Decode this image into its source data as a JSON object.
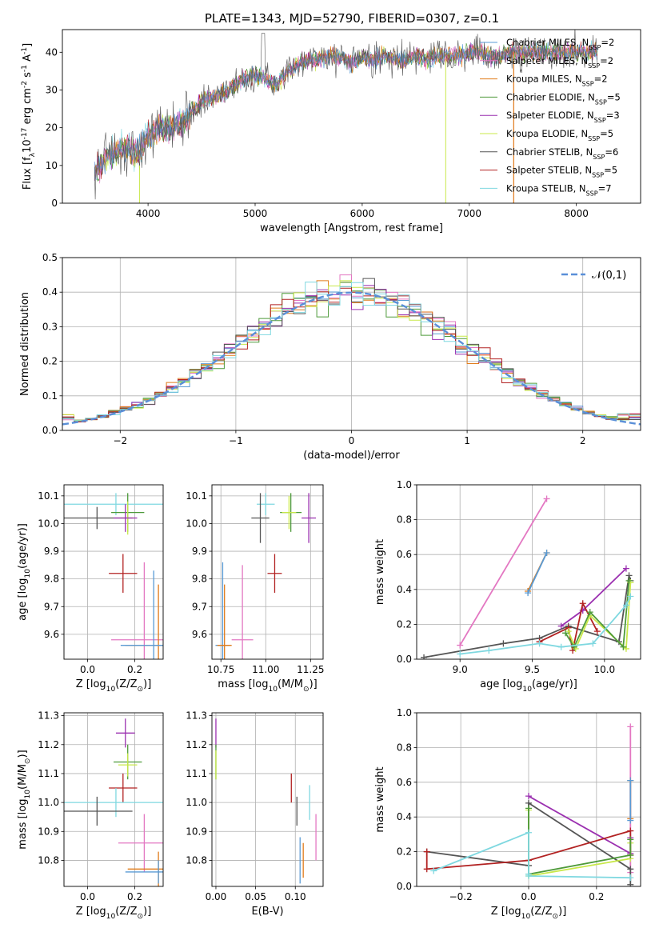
{
  "figure": {
    "title": "PLATE=1343, MJD=52790, FIBERID=0307, z=0.1",
    "model_colors": {
      "Chabrier MILES": "#5a9bd5",
      "Salpeter MILES": "#e377c2",
      "Kroupa MILES": "#e07b1a",
      "Chabrier ELODIE": "#4e9a3a",
      "Salpeter ELODIE": "#9b30b0",
      "Kroupa ELODIE": "#c8e84a",
      "Chabrier STELIB": "#555555",
      "Salpeter STELIB": "#b22222",
      "Kroupa STELIB": "#7fd8e0"
    }
  },
  "chart_data": [
    {
      "id": "spectrum",
      "type": "line",
      "xlabel": "wavelength [Angstrom, rest frame]",
      "ylabel": "Flux [f$_\\lambda$10$^{-17}$ erg cm$^{-2}$ s$^{-1}$ A$^{-1}$]",
      "xlim": [
        3200,
        8600
      ],
      "ylim": [
        0,
        46
      ],
      "xticks": [
        4000,
        5000,
        6000,
        7000,
        8000
      ],
      "yticks": [
        0,
        10,
        20,
        30,
        40
      ],
      "legend_position": "top-right",
      "legend": [
        {
          "label": "Chabrier MILES, N$_{SSP}$=2",
          "color": "#5a9bd5"
        },
        {
          "label": "Salpeter MILES, N$_{SSP}$=2",
          "color": "#e377c2"
        },
        {
          "label": "Kroupa MILES, N$_{SSP}$=2",
          "color": "#e07b1a"
        },
        {
          "label": "Chabrier ELODIE, N$_{SSP}$=5",
          "color": "#4e9a3a"
        },
        {
          "label": "Salpeter ELODIE, N$_{SSP}$=3",
          "color": "#9b30b0"
        },
        {
          "label": "Kroupa ELODIE, N$_{SSP}$=5",
          "color": "#c8e84a"
        },
        {
          "label": "Chabrier STELIB, N$_{SSP}$=6",
          "color": "#555555"
        },
        {
          "label": "Salpeter STELIB, N$_{SSP}$=5",
          "color": "#b22222"
        },
        {
          "label": "Kroupa STELIB, N$_{SSP}$=7",
          "color": "#7fd8e0"
        }
      ],
      "continuum": [
        [
          3500,
          8
        ],
        [
          3600,
          12
        ],
        [
          3700,
          14
        ],
        [
          3800,
          15
        ],
        [
          3900,
          13
        ],
        [
          4000,
          18
        ],
        [
          4100,
          20
        ],
        [
          4200,
          20
        ],
        [
          4300,
          21
        ],
        [
          4400,
          24
        ],
        [
          4500,
          27
        ],
        [
          4600,
          28
        ],
        [
          4700,
          29
        ],
        [
          4800,
          31
        ],
        [
          4900,
          33
        ],
        [
          5000,
          34
        ],
        [
          5100,
          33
        ],
        [
          5200,
          31
        ],
        [
          5300,
          35
        ],
        [
          5400,
          37
        ],
        [
          5500,
          38
        ],
        [
          5600,
          38
        ],
        [
          5700,
          39
        ],
        [
          5800,
          39
        ],
        [
          5900,
          37
        ],
        [
          6000,
          39
        ],
        [
          6100,
          38
        ],
        [
          6200,
          39
        ],
        [
          6300,
          38
        ],
        [
          6400,
          38
        ],
        [
          6500,
          39
        ],
        [
          6600,
          38
        ],
        [
          6700,
          39
        ],
        [
          6800,
          39
        ],
        [
          6900,
          39
        ],
        [
          7000,
          40
        ],
        [
          7100,
          40
        ],
        [
          7200,
          39
        ],
        [
          7300,
          39
        ],
        [
          7400,
          40
        ],
        [
          7500,
          40
        ],
        [
          7600,
          40
        ],
        [
          7700,
          40
        ],
        [
          7800,
          40
        ],
        [
          7900,
          40
        ],
        [
          8000,
          40
        ],
        [
          8100,
          40
        ],
        [
          8200,
          40
        ]
      ]
    },
    {
      "id": "residuals",
      "type": "bar",
      "xlabel": "(data-model)/error",
      "ylabel": "Normed distribution",
      "xlim": [
        -2.5,
        2.5
      ],
      "ylim": [
        0,
        0.5
      ],
      "xticks": [
        -2,
        -1,
        0,
        1,
        2
      ],
      "yticks": [
        0.0,
        0.1,
        0.2,
        0.3,
        0.4,
        0.5
      ],
      "legend_position": "top-right",
      "legend": [
        {
          "label": "$\\mathcal{N}(0,1)$",
          "color": "#5a8fd8"
        }
      ],
      "bin_width": 0.1
    },
    {
      "id": "age-vs-Z",
      "type": "scatter",
      "xlabel": "Z [log$_{10}$(Z/Z$_\\odot$)]",
      "ylabel": "age  [log$_{10}$(age/yr)]",
      "xlim": [
        -0.1,
        0.32
      ],
      "ylim": [
        9.51,
        10.14
      ],
      "xticks": [
        0.0,
        0.2
      ],
      "yticks": [
        9.6,
        9.7,
        9.8,
        9.9,
        10.0,
        10.1
      ],
      "points": [
        {
          "model": "Kroupa STELIB",
          "x": 0.12,
          "y": 10.07,
          "xerr": 0.22,
          "yerr": 0.04
        },
        {
          "model": "Chabrier ELODIE",
          "x": 0.17,
          "y": 10.04,
          "xerr": 0.07,
          "yerr": 0.07
        },
        {
          "model": "Chabrier STELIB",
          "x": 0.04,
          "y": 10.02,
          "xerr": 0.15,
          "yerr": 0.04
        },
        {
          "model": "Kroupa ELODIE",
          "x": 0.17,
          "y": 10.02,
          "xerr": 0.03,
          "yerr": 0.06
        },
        {
          "model": "Salpeter ELODIE",
          "x": 0.16,
          "y": 10.02,
          "xerr": 0.05,
          "yerr": 0.05
        },
        {
          "model": "Salpeter STELIB",
          "x": 0.15,
          "y": 9.82,
          "xerr": 0.06,
          "yerr": 0.07
        },
        {
          "model": "Salpeter MILES",
          "x": 0.24,
          "y": 9.58,
          "xerr": 0.14,
          "yerr": 0.28
        },
        {
          "model": "Kroupa MILES",
          "x": 0.3,
          "y": 9.56,
          "xerr": 0.14,
          "yerr": 0.22
        },
        {
          "model": "Chabrier MILES",
          "x": 0.28,
          "y": 9.56,
          "xerr": 0.14,
          "yerr": 0.27
        }
      ]
    },
    {
      "id": "age-vs-mass",
      "type": "scatter",
      "xlabel": "mass [log$_{10}$(M/M$_\\odot$)]",
      "xlim": [
        10.7,
        11.32
      ],
      "ylim": [
        9.51,
        10.14
      ],
      "xticks": [
        10.75,
        11.0,
        11.25
      ],
      "yticks": [
        9.6,
        9.7,
        9.8,
        9.9,
        10.0,
        10.1
      ],
      "points": [
        {
          "model": "Kroupa STELIB",
          "x": 11.0,
          "y": 10.07,
          "xerr": 0.05,
          "yerr": 0.04
        },
        {
          "model": "Chabrier ELODIE",
          "x": 11.14,
          "y": 10.04,
          "xerr": 0.06,
          "yerr": 0.07
        },
        {
          "model": "Kroupa ELODIE",
          "x": 11.13,
          "y": 10.04,
          "xerr": 0.04,
          "yerr": 0.06
        },
        {
          "model": "Chabrier STELIB",
          "x": 10.97,
          "y": 10.02,
          "xerr": 0.05,
          "yerr": 0.09
        },
        {
          "model": "Salpeter ELODIE",
          "x": 11.24,
          "y": 10.02,
          "xerr": 0.04,
          "yerr": 0.09
        },
        {
          "model": "Salpeter STELIB",
          "x": 11.05,
          "y": 9.82,
          "xerr": 0.04,
          "yerr": 0.07
        },
        {
          "model": "Salpeter MILES",
          "x": 10.87,
          "y": 9.58,
          "xerr": 0.06,
          "yerr": 0.27
        },
        {
          "model": "Chabrier MILES",
          "x": 10.76,
          "y": 9.56,
          "xerr": 0.04,
          "yerr": 0.3
        },
        {
          "model": "Kroupa MILES",
          "x": 10.77,
          "y": 9.56,
          "xerr": 0.04,
          "yerr": 0.22
        }
      ]
    },
    {
      "id": "weight-vs-age",
      "type": "line",
      "ylabel": "mass weight",
      "xlabel": "age  [log$_{10}$(age/yr)]",
      "xlim": [
        8.7,
        10.25
      ],
      "ylim": [
        0,
        1
      ],
      "xticks": [
        9.0,
        9.5,
        10.0
      ],
      "yticks": [
        0.0,
        0.2,
        0.4,
        0.6,
        0.8,
        1.0
      ],
      "series": [
        {
          "model": "Salpeter MILES",
          "x": [
            9.0,
            9.6
          ],
          "y": [
            0.08,
            0.92
          ]
        },
        {
          "model": "Kroupa MILES",
          "x": [
            9.47,
            9.6
          ],
          "y": [
            0.39,
            0.61
          ]
        },
        {
          "model": "Chabrier MILES",
          "x": [
            9.47,
            9.6
          ],
          "y": [
            0.38,
            0.61
          ]
        },
        {
          "model": "Chabrier STELIB",
          "x": [
            8.75,
            9.3,
            9.55,
            9.75,
            10.1,
            10.17,
            10.18
          ],
          "y": [
            0.01,
            0.09,
            0.12,
            0.19,
            0.1,
            0.48,
            0.45
          ]
        },
        {
          "model": "Salpeter ELODIE",
          "x": [
            9.7,
            9.85,
            10.15
          ],
          "y": [
            0.19,
            0.28,
            0.52
          ]
        },
        {
          "model": "Salpeter STELIB",
          "x": [
            9.55,
            9.75,
            9.78,
            9.85,
            9.95
          ],
          "y": [
            0.1,
            0.18,
            0.05,
            0.32,
            0.16
          ]
        },
        {
          "model": "Kroupa ELODIE",
          "x": [
            9.75,
            9.8,
            9.9,
            10.15,
            10.18
          ],
          "y": [
            0.16,
            0.06,
            0.25,
            0.06,
            0.44
          ]
        },
        {
          "model": "Chabrier ELODIE",
          "x": [
            9.73,
            9.79,
            9.9,
            10.13,
            10.17
          ],
          "y": [
            0.15,
            0.07,
            0.27,
            0.07,
            0.45
          ]
        },
        {
          "model": "Kroupa STELIB",
          "x": [
            9.0,
            9.2,
            9.55,
            9.7,
            9.92,
            10.15,
            10.18
          ],
          "y": [
            0.03,
            0.05,
            0.09,
            0.07,
            0.09,
            0.31,
            0.36
          ]
        }
      ]
    },
    {
      "id": "mass-vs-Z",
      "type": "scatter",
      "ylabel": "mass [log$_{10}$(M/M$_\\odot$)]",
      "xlabel": "Z [log$_{10}$(Z/Z$_\\odot$)]",
      "xlim": [
        -0.1,
        0.32
      ],
      "ylim": [
        10.71,
        11.31
      ],
      "xticks": [
        0.0,
        0.2
      ],
      "yticks": [
        10.8,
        10.9,
        11.0,
        11.1,
        11.2,
        11.3
      ],
      "points": [
        {
          "model": "Salpeter ELODIE",
          "x": 0.16,
          "y": 11.24,
          "xerr": 0.04,
          "yerr": 0.05
        },
        {
          "model": "Chabrier ELODIE",
          "x": 0.17,
          "y": 11.14,
          "xerr": 0.06,
          "yerr": 0.06
        },
        {
          "model": "Kroupa ELODIE",
          "x": 0.17,
          "y": 11.13,
          "xerr": 0.04,
          "yerr": 0.04
        },
        {
          "model": "Salpeter STELIB",
          "x": 0.15,
          "y": 11.05,
          "xerr": 0.06,
          "yerr": 0.05
        },
        {
          "model": "Kroupa STELIB",
          "x": 0.12,
          "y": 11.0,
          "xerr": 0.22,
          "yerr": 0.05
        },
        {
          "model": "Chabrier STELIB",
          "x": 0.04,
          "y": 10.97,
          "xerr": 0.15,
          "yerr": 0.05
        },
        {
          "model": "Salpeter MILES",
          "x": 0.24,
          "y": 10.86,
          "xerr": 0.11,
          "yerr": 0.1
        },
        {
          "model": "Kroupa MILES",
          "x": 0.3,
          "y": 10.77,
          "xerr": 0.13,
          "yerr": 0.06
        },
        {
          "model": "Chabrier MILES",
          "x": 0.3,
          "y": 10.76,
          "xerr": 0.14,
          "yerr": 0.04
        }
      ]
    },
    {
      "id": "mass-vs-ebv",
      "type": "scatter",
      "xlabel": "E(B-V)",
      "xlim": [
        -0.005,
        0.135
      ],
      "ylim": [
        10.71,
        11.31
      ],
      "xticks": [
        0.0,
        0.05,
        0.1
      ],
      "yticks": [
        10.8,
        10.9,
        11.0,
        11.1,
        11.2,
        11.3
      ],
      "points": [
        {
          "model": "Salpeter ELODIE",
          "x": 0.0,
          "y": 11.24,
          "xerr": 0.0,
          "yerr": 0.05
        },
        {
          "model": "Chabrier ELODIE",
          "x": 0.0,
          "y": 11.14,
          "xerr": 0.0,
          "yerr": 0.06
        },
        {
          "model": "Kroupa ELODIE",
          "x": 0.0,
          "y": 11.13,
          "xerr": 0.0,
          "yerr": 0.05
        },
        {
          "model": "Salpeter STELIB",
          "x": 0.095,
          "y": 11.05,
          "xerr": 0.0,
          "yerr": 0.05
        },
        {
          "model": "Chabrier STELIB",
          "x": 0.102,
          "y": 10.97,
          "xerr": 0.0,
          "yerr": 0.05
        },
        {
          "model": "Kroupa STELIB",
          "x": 0.118,
          "y": 11.0,
          "xerr": 0.0,
          "yerr": 0.06
        },
        {
          "model": "Salpeter MILES",
          "x": 0.126,
          "y": 10.88,
          "xerr": 0.0,
          "yerr": 0.08
        },
        {
          "model": "Chabrier MILES",
          "x": 0.106,
          "y": 10.8,
          "xerr": 0.0,
          "yerr": 0.08
        },
        {
          "model": "Kroupa MILES",
          "x": 0.11,
          "y": 10.8,
          "xerr": 0.0,
          "yerr": 0.06
        }
      ]
    },
    {
      "id": "weight-vs-Z",
      "type": "line",
      "ylabel": "mass weight",
      "xlabel": "Z [log$_{10}$(Z/Z$_\\odot$)]",
      "xlim": [
        -0.33,
        0.33
      ],
      "ylim": [
        0,
        1
      ],
      "xticks": [
        -0.2,
        0.0,
        0.2
      ],
      "yticks": [
        0.0,
        0.2,
        0.4,
        0.6,
        0.8,
        1.0
      ],
      "series": [
        {
          "model": "Salpeter MILES",
          "x": [
            0.3,
            0.3
          ],
          "y": [
            0.08,
            0.92
          ]
        },
        {
          "model": "Kroupa MILES",
          "x": [
            0.3,
            0.3
          ],
          "y": [
            0.39,
            0.61
          ]
        },
        {
          "model": "Chabrier MILES",
          "x": [
            0.3,
            0.3
          ],
          "y": [
            0.38,
            0.61
          ]
        },
        {
          "model": "Salpeter ELODIE",
          "x": [
            0.0,
            0.3,
            0.3
          ],
          "y": [
            0.52,
            0.19,
            0.28
          ]
        },
        {
          "model": "Chabrier STELIB",
          "x": [
            -0.3,
            0.0,
            0.0,
            0.3,
            0.3
          ],
          "y": [
            0.2,
            0.12,
            0.48,
            0.1,
            0.01
          ]
        },
        {
          "model": "Salpeter STELIB",
          "x": [
            -0.3,
            -0.3,
            0.0,
            0.3,
            0.3
          ],
          "y": [
            0.2,
            0.1,
            0.15,
            0.32,
            0.18
          ]
        },
        {
          "model": "Kroupa ELODIE",
          "x": [
            0.0,
            0.0,
            0.3,
            0.3
          ],
          "y": [
            0.44,
            0.06,
            0.16,
            0.25
          ]
        },
        {
          "model": "Chabrier ELODIE",
          "x": [
            0.0,
            0.0,
            0.3,
            0.3
          ],
          "y": [
            0.45,
            0.07,
            0.18,
            0.27
          ]
        },
        {
          "model": "Kroupa STELIB",
          "x": [
            -0.28,
            0.0,
            0.0,
            0.0,
            0.3
          ],
          "y": [
            0.09,
            0.31,
            0.07,
            0.06,
            0.05
          ]
        }
      ]
    }
  ]
}
